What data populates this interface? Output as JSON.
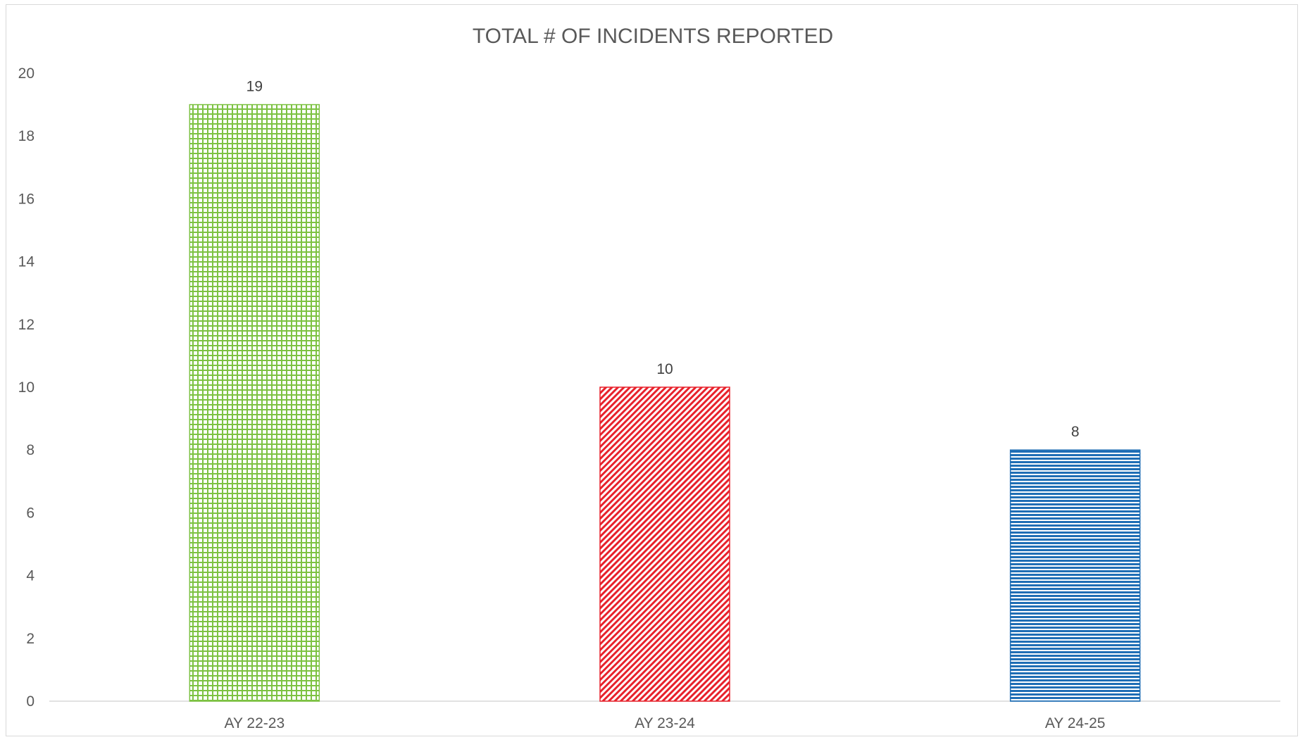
{
  "chart_data": {
    "type": "bar",
    "title": "TOTAL # OF INCIDENTS REPORTED",
    "xlabel": "",
    "ylabel": "",
    "categories": [
      "AY 22-23",
      "AY 23-24",
      "AY 24-25"
    ],
    "values": [
      19,
      10,
      8
    ],
    "data_labels": [
      "19",
      "10",
      "8"
    ],
    "ylim": [
      0,
      20
    ],
    "yticks": [
      0,
      2,
      4,
      6,
      8,
      10,
      12,
      14,
      16,
      18,
      20
    ],
    "grid": false,
    "legend": "none",
    "bar_colors": [
      "#7dc242",
      "#e8212b",
      "#1f6eb5"
    ],
    "bar_patterns": [
      "grid",
      "diagonal",
      "horizontal"
    ]
  }
}
